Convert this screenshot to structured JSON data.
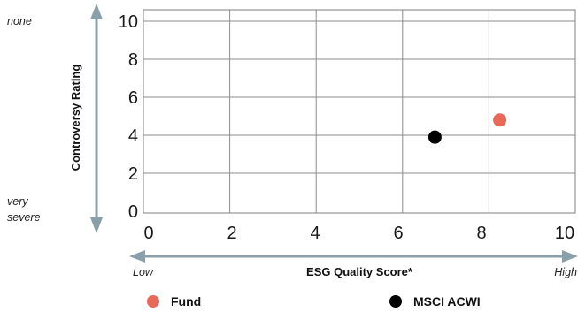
{
  "chart_data": {
    "type": "scatter",
    "xlabel": "ESG Quality Score*",
    "ylabel": "Controversy Rating",
    "xlim": [
      0,
      10
    ],
    "ylim": [
      0,
      10
    ],
    "x_ticks": [
      "0",
      "2",
      "4",
      "6",
      "8",
      "10"
    ],
    "y_ticks": [
      "0",
      "2",
      "4",
      "6",
      "8",
      "10"
    ],
    "grid": true,
    "x_axis_ends": {
      "low": "Low",
      "high": "High"
    },
    "y_axis_ends": {
      "top": "none",
      "bottom_line1": "very",
      "bottom_line2": "severe"
    },
    "legend_position": "bottom",
    "series": [
      {
        "name": "Fund",
        "color": "#e8695a",
        "x": 8.25,
        "y": 4.8
      },
      {
        "name": "MSCI ACWI",
        "color": "#000000",
        "x": 6.75,
        "y": 3.9
      }
    ]
  }
}
